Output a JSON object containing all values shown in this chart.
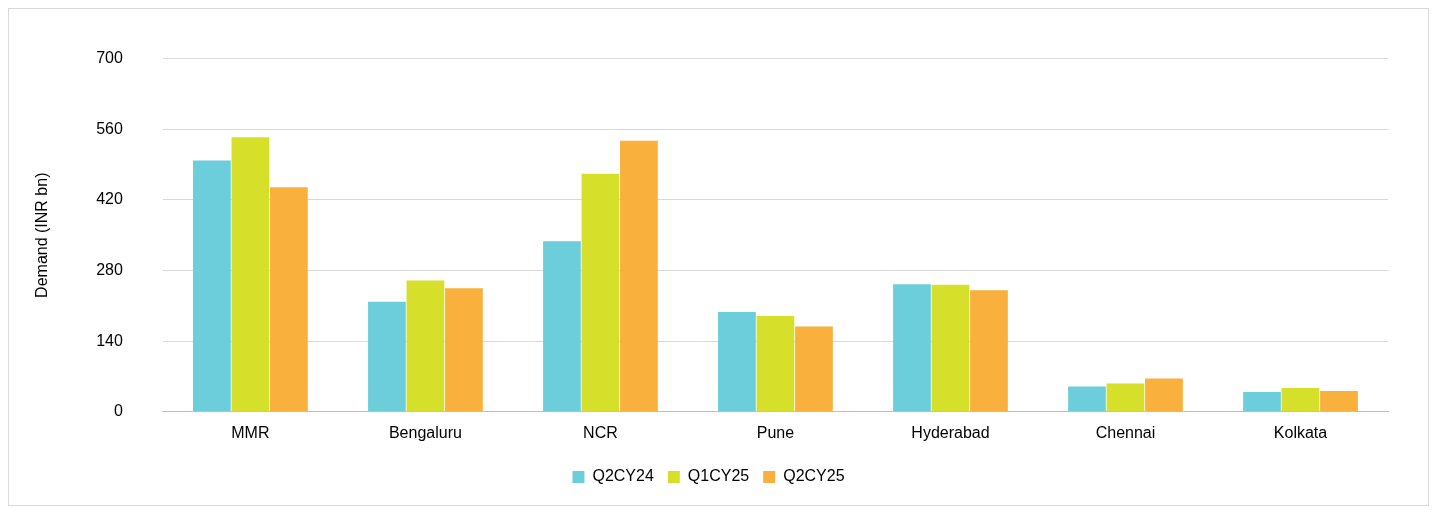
{
  "chart_data": {
    "type": "bar",
    "ylabel": "Demand (INR bn)",
    "categories": [
      "MMR",
      "Bengaluru",
      "NCR",
      "Pune",
      "Hyderabad",
      "Chennai",
      "Kolkata"
    ],
    "series": [
      {
        "name": "Q2CY24",
        "color": "#6dcedb",
        "values": [
          498,
          218,
          338,
          198,
          253,
          50,
          39
        ]
      },
      {
        "name": "Q1CY25",
        "color": "#d6e02a",
        "values": [
          544,
          260,
          472,
          190,
          252,
          56,
          47
        ]
      },
      {
        "name": "Q2CY25",
        "color": "#f9b03c",
        "values": [
          445,
          245,
          537,
          169,
          241,
          66,
          41
        ]
      }
    ],
    "ylim": [
      0,
      700
    ],
    "yticks": [
      0,
      140,
      280,
      420,
      560,
      700
    ],
    "grid": "y",
    "legend": "bottom"
  }
}
